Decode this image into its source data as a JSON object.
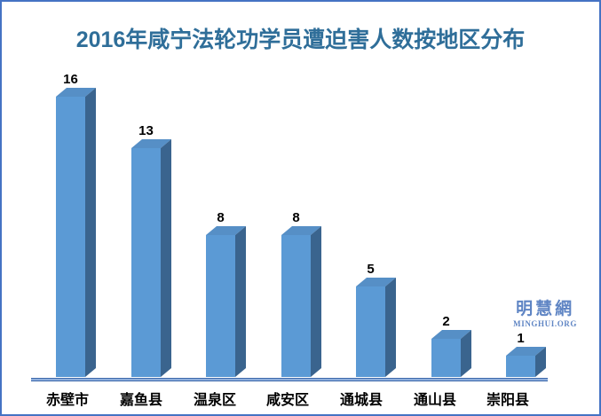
{
  "window": {
    "border_color": "#4573c4",
    "background_color": "#ffffff"
  },
  "title": "2016年咸宁法轮功学员遭迫害人数按地区分布",
  "title_color": "#2f6e99",
  "watermark": {
    "cn": "明慧網",
    "en": "MINGHUI.ORG",
    "color": "#5f85c4"
  },
  "chart_data": {
    "type": "bar",
    "variant": "3d-column",
    "title": "2016年咸宁法轮功学员遭迫害人数按地区分布",
    "categories": [
      "赤壁市",
      "嘉鱼县",
      "温泉区",
      "咸安区",
      "通城县",
      "通山县",
      "崇阳县"
    ],
    "values": [
      16,
      13,
      8,
      8,
      5,
      2,
      1
    ],
    "xlabel": "",
    "ylabel": "",
    "ylim": [
      0,
      16
    ],
    "grid": false,
    "legend": false,
    "data_labels": true,
    "data_label_color": "#000000",
    "category_label_color": "#000000",
    "bar_colors": {
      "front": "#5b9ad5",
      "top": "#568fc6",
      "side": "#3a648e"
    },
    "axis_line_color": "#3e69ab"
  }
}
